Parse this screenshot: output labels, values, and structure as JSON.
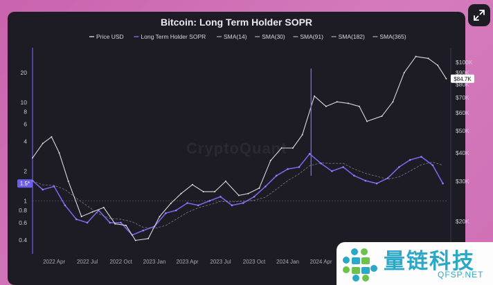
{
  "chart_data": {
    "type": "line",
    "title": "Bitcoin: Long Term Holder SOPR",
    "xlabel": "",
    "ylabel": "",
    "x_ticks": [
      "2022 Apr",
      "2022 Jul",
      "2022 Oct",
      "2023 Jan",
      "2023 Apr",
      "2023 Jul",
      "2023 Oct",
      "2024 Jan",
      "2024 Apr"
    ],
    "left_axis": {
      "scale": "log",
      "ticks": [
        "20",
        "10",
        "8",
        "6",
        "4",
        "2",
        "1",
        "0.8",
        "0.6",
        "0.4"
      ],
      "current_label": "1.5*"
    },
    "right_axis": {
      "scale": "log",
      "ticks": [
        "$100K",
        "$90K",
        "$80K",
        "$70K",
        "$60K",
        "$50K",
        "$40K",
        "$30K",
        "$20K"
      ],
      "current_label": "$84.7K"
    },
    "legend": [
      "Price USD",
      "Long Term Holder SOPR",
      "SMA(14)",
      "SMA(30)",
      "SMA(91)",
      "SMA(182)",
      "SMA(365)"
    ],
    "legend_position": "top",
    "series": [
      {
        "name": "Price USD",
        "x": [
          "2022-02-01",
          "2022-03-01",
          "2022-03-25",
          "2022-04-15",
          "2022-05-10",
          "2022-06-15",
          "2022-07-15",
          "2022-08-15",
          "2022-09-15",
          "2022-10-15",
          "2022-11-10",
          "2022-12-15",
          "2023-01-15",
          "2023-02-15",
          "2023-03-15",
          "2023-04-15",
          "2023-05-15",
          "2023-06-15",
          "2023-07-15",
          "2023-08-20",
          "2023-09-15",
          "2023-10-15",
          "2023-11-15",
          "2023-12-15",
          "2024-01-15",
          "2024-02-10",
          "2024-03-14",
          "2024-04-15",
          "2024-05-15",
          "2024-06-15",
          "2024-07-15",
          "2024-08-05",
          "2024-09-15",
          "2024-10-15",
          "2024-11-15",
          "2024-12-17",
          "2025-01-20",
          "2025-02-15",
          "2025-03-10"
        ],
        "values": [
          38,
          44,
          47,
          40,
          30,
          21,
          22,
          23,
          19.5,
          19.2,
          16.5,
          16.8,
          21,
          24,
          26.5,
          29,
          27,
          27,
          30,
          26,
          26.5,
          28,
          37,
          42,
          42,
          48,
          71,
          64,
          67,
          66,
          64,
          55,
          58,
          67,
          90,
          106,
          104,
          97,
          84.7
        ]
      },
      {
        "name": "Long Term Holder SOPR",
        "x": [
          "2022-02-01",
          "2022-03-01",
          "2022-04-01",
          "2022-05-01",
          "2022-06-01",
          "2022-07-01",
          "2022-08-01",
          "2022-09-01",
          "2022-10-01",
          "2022-11-01",
          "2022-12-01",
          "2023-01-01",
          "2023-02-01",
          "2023-03-01",
          "2023-04-01",
          "2023-05-01",
          "2023-06-01",
          "2023-07-01",
          "2023-08-01",
          "2023-09-01",
          "2023-10-01",
          "2023-11-01",
          "2023-12-01",
          "2024-01-01",
          "2024-02-01",
          "2024-03-01",
          "2024-04-01",
          "2024-05-01",
          "2024-06-01",
          "2024-07-01",
          "2024-08-01",
          "2024-09-01",
          "2024-10-01",
          "2024-11-01",
          "2024-12-01",
          "2025-01-01",
          "2025-02-01",
          "2025-03-01"
        ],
        "values": [
          1.6,
          1.3,
          1.4,
          0.9,
          0.65,
          0.6,
          0.8,
          0.6,
          0.6,
          0.45,
          0.5,
          0.55,
          0.75,
          0.8,
          0.95,
          0.9,
          1.0,
          1.1,
          0.9,
          0.95,
          1.1,
          1.4,
          1.8,
          2.1,
          2.2,
          3.0,
          2.4,
          2.0,
          2.2,
          1.8,
          1.6,
          1.5,
          1.7,
          2.2,
          2.6,
          2.8,
          2.3,
          1.5
        ]
      }
    ]
  },
  "watermark": "CryptoQuant",
  "brand": {
    "name_cn": "量链科技",
    "domain": "QFSP.NET"
  },
  "colors": {
    "price": "#d8d8de",
    "sopr": "#7b6cf0",
    "background": "#1d1c24",
    "accent": "#ffffff"
  },
  "icons": {
    "expand": "expand-arrows-icon"
  }
}
